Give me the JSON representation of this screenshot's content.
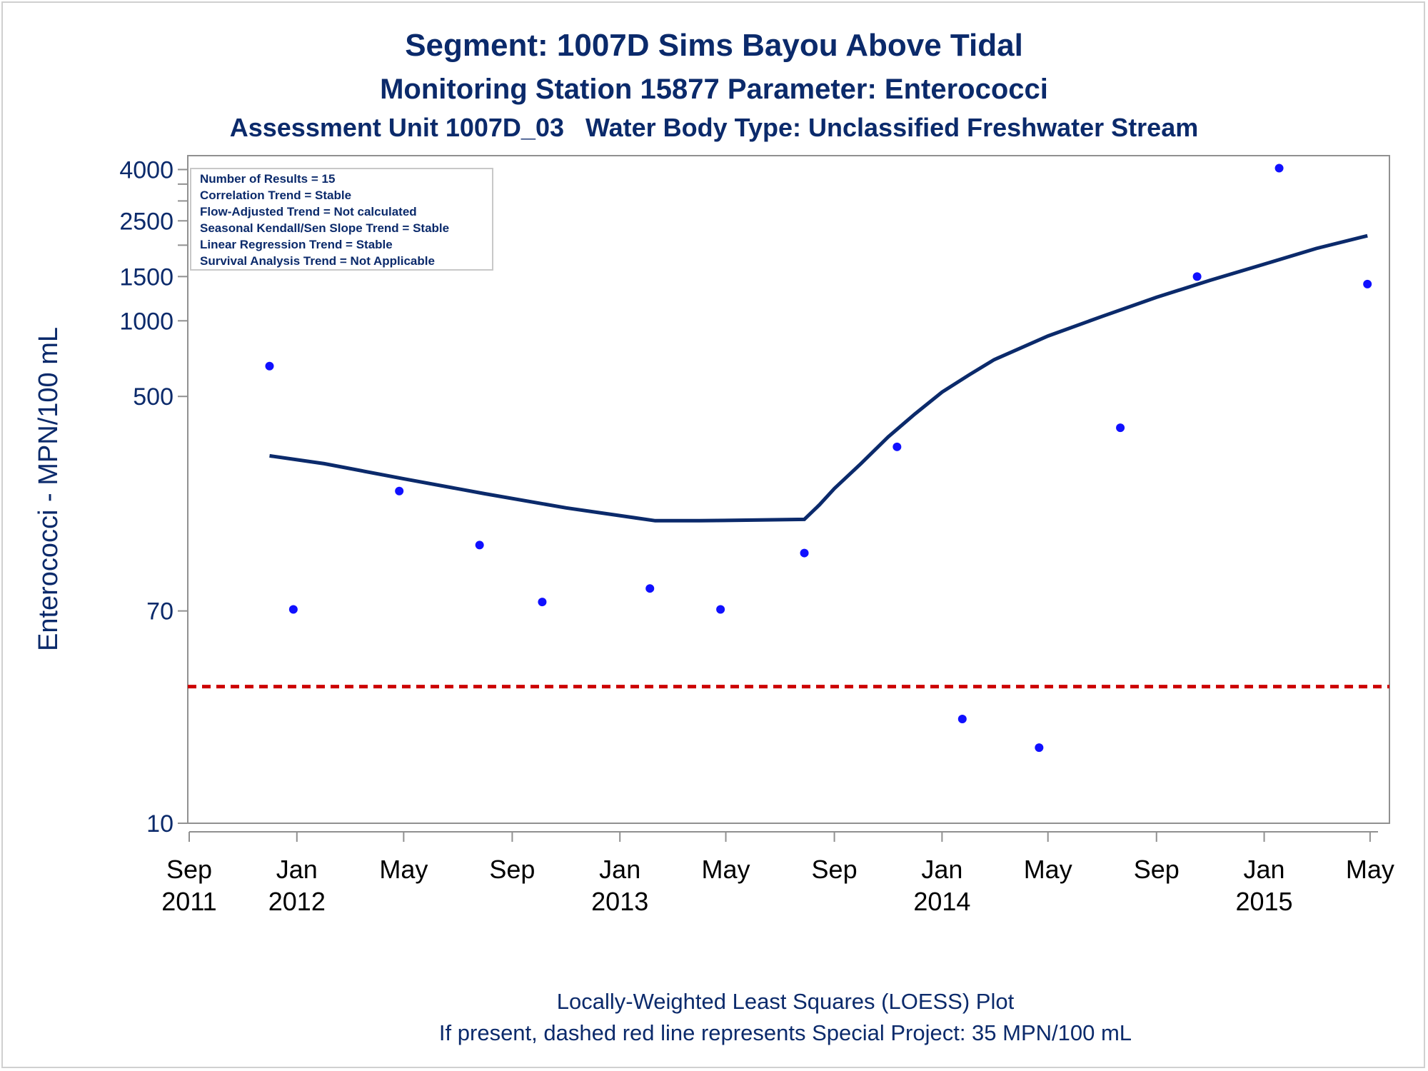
{
  "title": "Segment: 1007D  Sims Bayou Above Tidal",
  "subtitle1": "Monitoring Station 15877 Parameter: Enterococci",
  "subtitle2": "Assessment Unit 1007D_03   Water Body Type: Unclassified Freshwater Stream",
  "footnote1": "Locally-Weighted Least Squares (LOESS) Plot",
  "footnote2": "If present, dashed red line represents Special Project: 35 MPN/100 mL",
  "inset": [
    "Number of Results = 15",
    "Correlation Trend = Stable",
    "Flow-Adjusted Trend = Not calculated",
    "Seasonal Kendall/Sen Slope Trend = Stable",
    "Linear Regression Trend = Stable",
    "Survival Analysis Trend = Not Applicable"
  ],
  "colors": {
    "title": "#0b2a6b",
    "points": "#1010ff",
    "loess": "#0b2a6b",
    "reference": "#cc0000",
    "axis": "#909090"
  },
  "chart_data": {
    "type": "scatter",
    "ylabel": "Enterococci - MPN/100 mL",
    "y_scale": "log",
    "ylim": [
      10,
      4200
    ],
    "xlim": [
      "2011-09-01",
      "2015-05-10"
    ],
    "y_ticks": [
      {
        "value": 4000,
        "label": "4000"
      },
      {
        "value": 2500,
        "label": "2500"
      },
      {
        "value": 1500,
        "label": "1500"
      },
      {
        "value": 1000,
        "label": "1000"
      },
      {
        "value": 500,
        "label": "500"
      },
      {
        "value": 70,
        "label": "70"
      },
      {
        "value": 10,
        "label": "10"
      }
    ],
    "y_minor_ticks": [
      3500,
      3000,
      2000
    ],
    "x_ticks": [
      {
        "date": "2011-09-01",
        "line1": "Sep",
        "line2": "2011"
      },
      {
        "date": "2012-01-01",
        "line1": "Jan",
        "line2": "2012"
      },
      {
        "date": "2012-05-01",
        "line1": "May",
        "line2": ""
      },
      {
        "date": "2012-09-01",
        "line1": "Sep",
        "line2": ""
      },
      {
        "date": "2013-01-01",
        "line1": "Jan",
        "line2": "2013"
      },
      {
        "date": "2013-05-01",
        "line1": "May",
        "line2": ""
      },
      {
        "date": "2013-09-01",
        "line1": "Sep",
        "line2": ""
      },
      {
        "date": "2014-01-01",
        "line1": "Jan",
        "line2": "2014"
      },
      {
        "date": "2014-05-01",
        "line1": "May",
        "line2": ""
      },
      {
        "date": "2014-09-01",
        "line1": "Sep",
        "line2": ""
      },
      {
        "date": "2015-01-01",
        "line1": "Jan",
        "line2": "2015"
      },
      {
        "date": "2015-05-01",
        "line1": "May",
        "line2": ""
      }
    ],
    "reference_line": {
      "value": 35,
      "style": "dashed"
    },
    "points": [
      {
        "date": "2011-12-01",
        "value": 660
      },
      {
        "date": "2011-12-28",
        "value": 71
      },
      {
        "date": "2012-04-26",
        "value": 210
      },
      {
        "date": "2012-07-26",
        "value": 128
      },
      {
        "date": "2012-10-05",
        "value": 76
      },
      {
        "date": "2013-02-04",
        "value": 86
      },
      {
        "date": "2013-04-25",
        "value": 71
      },
      {
        "date": "2013-07-29",
        "value": 119
      },
      {
        "date": "2013-11-11",
        "value": 315
      },
      {
        "date": "2014-01-24",
        "value": 26
      },
      {
        "date": "2014-04-21",
        "value": 20
      },
      {
        "date": "2014-07-22",
        "value": 375
      },
      {
        "date": "2014-10-17",
        "value": 1500
      },
      {
        "date": "2015-01-18",
        "value": 4050
      },
      {
        "date": "2015-04-28",
        "value": 1400
      }
    ],
    "loess_curve": [
      {
        "date": "2011-12-01",
        "value": 290
      },
      {
        "date": "2012-02-01",
        "value": 270
      },
      {
        "date": "2012-05-01",
        "value": 235
      },
      {
        "date": "2012-08-01",
        "value": 205
      },
      {
        "date": "2012-11-01",
        "value": 180
      },
      {
        "date": "2013-02-10",
        "value": 160
      },
      {
        "date": "2013-04-01",
        "value": 160
      },
      {
        "date": "2013-06-01",
        "value": 161
      },
      {
        "date": "2013-07-29",
        "value": 162
      },
      {
        "date": "2013-08-15",
        "value": 185
      },
      {
        "date": "2013-09-01",
        "value": 215
      },
      {
        "date": "2013-10-01",
        "value": 270
      },
      {
        "date": "2013-11-01",
        "value": 345
      },
      {
        "date": "2013-12-01",
        "value": 425
      },
      {
        "date": "2014-01-01",
        "value": 520
      },
      {
        "date": "2014-02-01",
        "value": 610
      },
      {
        "date": "2014-03-01",
        "value": 700
      },
      {
        "date": "2014-05-01",
        "value": 870
      },
      {
        "date": "2014-07-01",
        "value": 1040
      },
      {
        "date": "2014-09-01",
        "value": 1240
      },
      {
        "date": "2014-11-01",
        "value": 1450
      },
      {
        "date": "2015-01-01",
        "value": 1680
      },
      {
        "date": "2015-03-01",
        "value": 1940
      },
      {
        "date": "2015-04-28",
        "value": 2180
      }
    ]
  }
}
